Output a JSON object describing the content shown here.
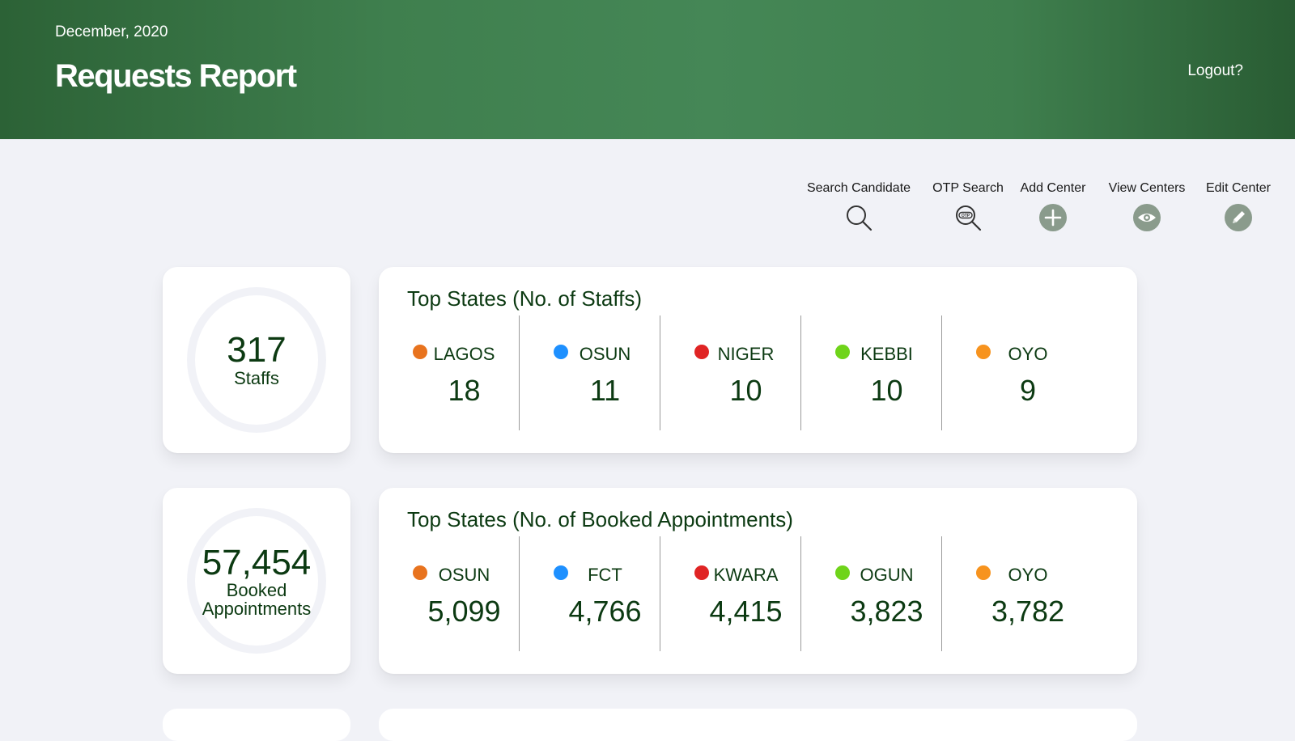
{
  "header": {
    "date": "December, 2020",
    "title": "Requests Report",
    "logout_label": "Logout?"
  },
  "actions": [
    {
      "label": "Search Candidate",
      "icon": "search-icon"
    },
    {
      "label": "OTP Search",
      "icon": "otp-search-icon"
    },
    {
      "label": "Add Center",
      "icon": "plus-circle-icon"
    },
    {
      "label": "View Centers",
      "icon": "eye-circle-icon"
    },
    {
      "label": "Edit Center",
      "icon": "pencil-circle-icon"
    }
  ],
  "colors": {
    "header_green": "#3f7f4e",
    "text_dark_green": "#0c3a12",
    "page_bg": "#f1f2f7",
    "icon_gray": "#8a9b8c",
    "dot_1": "#e8731e",
    "dot_2": "#1e90ff",
    "dot_3": "#e02424",
    "dot_4": "#6fd41a",
    "dot_5": "#f7931e"
  },
  "staffs": {
    "total": "317",
    "total_label": "Staffs",
    "title": "Top States (No. of Staffs)",
    "states": [
      {
        "name": "LAGOS",
        "value": "18"
      },
      {
        "name": "OSUN",
        "value": "11"
      },
      {
        "name": "NIGER",
        "value": "10"
      },
      {
        "name": "KEBBI",
        "value": "10"
      },
      {
        "name": "OYO",
        "value": "9"
      }
    ]
  },
  "appointments": {
    "total": "57,454",
    "total_label_line1": "Booked",
    "total_label_line2": "Appointments",
    "title": "Top States (No. of Booked Appointments)",
    "states": [
      {
        "name": "OSUN",
        "value": "5,099"
      },
      {
        "name": "FCT",
        "value": "4,766"
      },
      {
        "name": "KWARA",
        "value": "4,415"
      },
      {
        "name": "OGUN",
        "value": "3,823"
      },
      {
        "name": "OYO",
        "value": "3,782"
      }
    ]
  }
}
